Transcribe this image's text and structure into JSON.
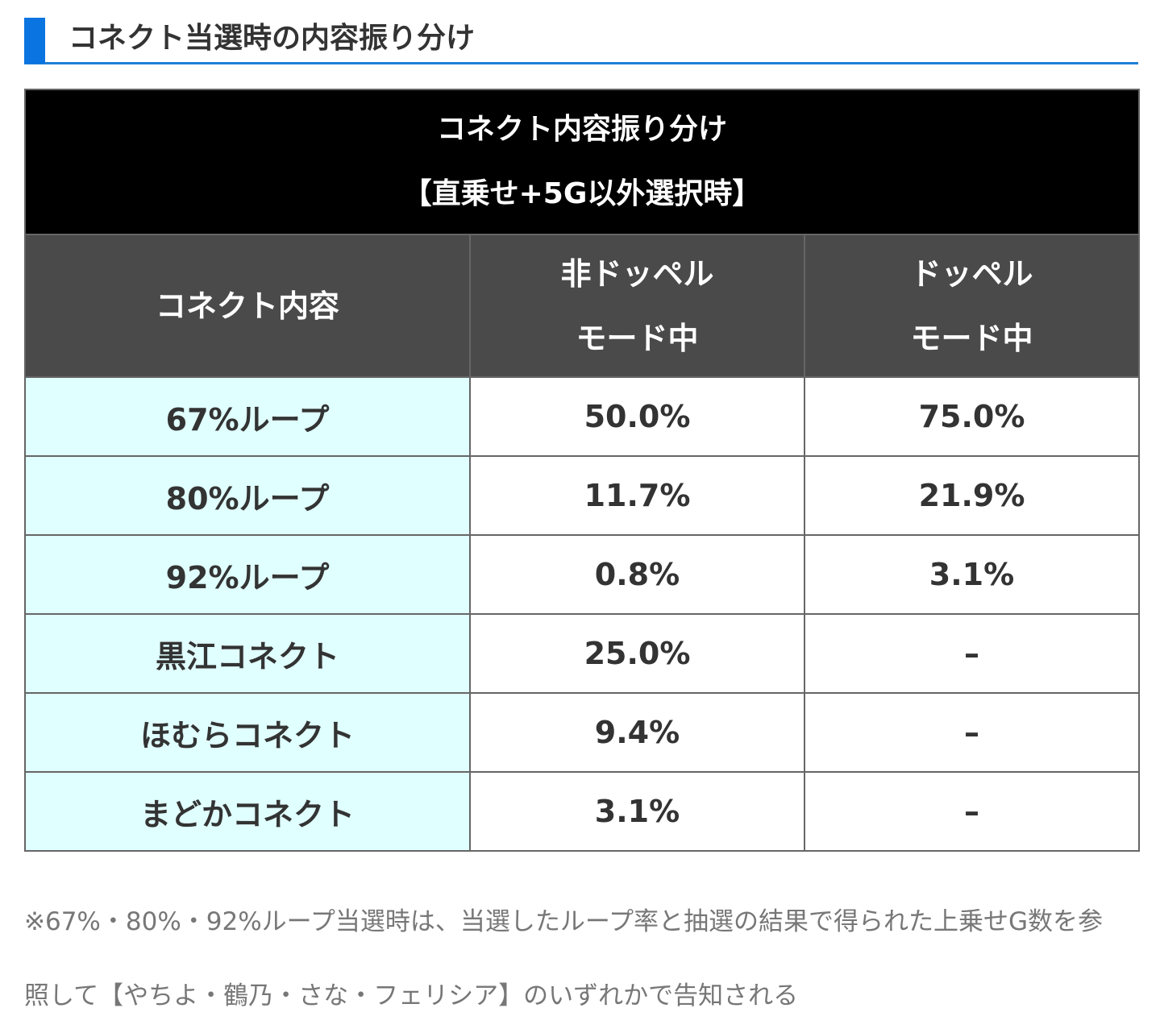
{
  "heading": {
    "title": "コネクト当選時の内容振り分け",
    "accent_color": "#0a74e0"
  },
  "table": {
    "title_line1": "コネクト内容振り分け",
    "title_line2": "【直乗せ+5G以外選択時】",
    "headers": {
      "col1": "コネクト内容",
      "col2_line1": "非ドッペル",
      "col2_line2": "モード中",
      "col3_line1": "ドッペル",
      "col3_line2": "モード中"
    },
    "rows": [
      {
        "label": "67%ループ",
        "non_doppel": "50.0%",
        "doppel": "75.0%"
      },
      {
        "label": "80%ループ",
        "non_doppel": "11.7%",
        "doppel": "21.9%"
      },
      {
        "label": "92%ループ",
        "non_doppel": "0.8%",
        "doppel": "3.1%"
      },
      {
        "label": "黒江コネクト",
        "non_doppel": "25.0%",
        "doppel": "–"
      },
      {
        "label": "ほむらコネクト",
        "non_doppel": "9.4%",
        "doppel": "–"
      },
      {
        "label": "まどかコネクト",
        "non_doppel": "3.1%",
        "doppel": "–"
      }
    ],
    "colors": {
      "title_bg": "#000000",
      "header_bg": "#4a4a4a",
      "label_bg": "#e0ffff"
    }
  },
  "note": {
    "line1": "※67%・80%・92%ループ当選時は、当選したループ率と抽選の結果で得られた上乗せG数を参",
    "line2": "照して【やちよ・鶴乃・さな・フェリシア】のいずれかで告知される"
  }
}
